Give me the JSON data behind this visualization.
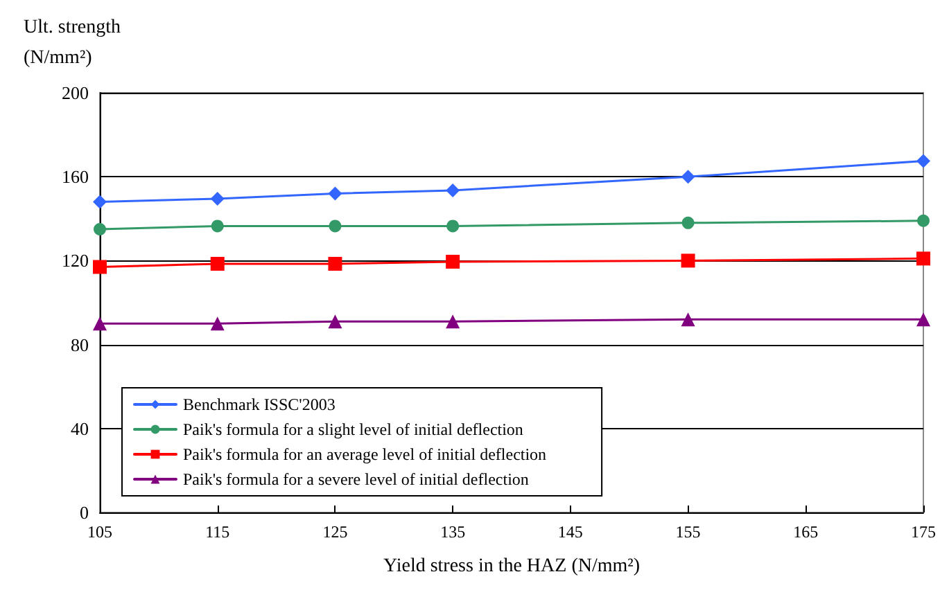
{
  "chart_data": {
    "type": "line",
    "ylabel": "Ult. strength\n(N/mm²)",
    "xlabel": "Yield stress in the HAZ (N/mm²)",
    "x": [
      105,
      115,
      125,
      135,
      155,
      175
    ],
    "series": [
      {
        "name": "Benchmark ISSC'2003",
        "color": "#3366ff",
        "marker": "diamond",
        "values": [
          148,
          149.5,
          152,
          153.5,
          160,
          167.5
        ]
      },
      {
        "name": "Paik's formula for a slight level of initial deflection",
        "color": "#339966",
        "marker": "circle",
        "values": [
          135,
          136.5,
          136.5,
          136.5,
          138,
          139
        ]
      },
      {
        "name": "Paik's formula for an average level of initial deflection",
        "color": "#ff0000",
        "marker": "square",
        "values": [
          117,
          118.5,
          118.5,
          119.5,
          120,
          121
        ]
      },
      {
        "name": "Paik's formula for a severe level of initial deflection",
        "color": "#800080",
        "marker": "triangle",
        "values": [
          90,
          90,
          91,
          91,
          92,
          92
        ]
      }
    ],
    "xlim": [
      105,
      175
    ],
    "xticks": [
      105,
      115,
      125,
      135,
      145,
      155,
      165,
      175
    ],
    "ylim": [
      0,
      200
    ],
    "yticks": [
      0,
      40,
      80,
      120,
      160,
      200
    ],
    "grid": "y",
    "legend": "bottom left",
    "line_style": "solid"
  }
}
